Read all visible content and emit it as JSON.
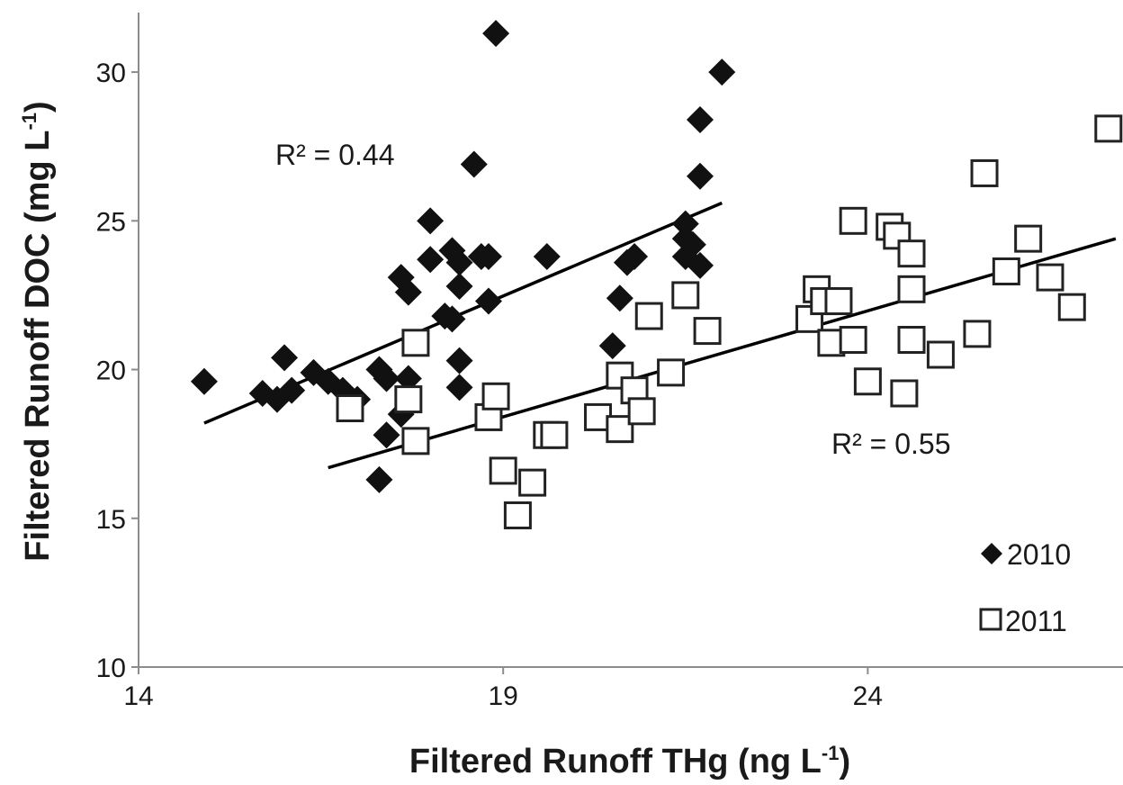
{
  "chart_data": {
    "type": "scatter",
    "title": "",
    "xlabel": {
      "text": "Filtered Runoff  THg (ng L",
      "sup": "-1",
      "tail": ")"
    },
    "ylabel": {
      "text": "Filtered Runoff  DOC (mg L",
      "sup": "-1",
      "tail": ")"
    },
    "xlim": [
      14,
      27.5
    ],
    "ylim": [
      10,
      32
    ],
    "xticks": [
      14,
      19,
      24
    ],
    "yticks": [
      10,
      15,
      20,
      25,
      30
    ],
    "grid": false,
    "legend_position": "bottom-right",
    "series": [
      {
        "name": "2010",
        "marker": "filled-diamond",
        "color": "#111111",
        "points": [
          [
            14.9,
            19.6
          ],
          [
            15.7,
            19.2
          ],
          [
            15.9,
            19.0
          ],
          [
            16.0,
            20.4
          ],
          [
            16.1,
            19.3
          ],
          [
            16.4,
            19.9
          ],
          [
            16.6,
            19.6
          ],
          [
            16.8,
            19.3
          ],
          [
            17.0,
            19.0
          ],
          [
            17.3,
            20.0
          ],
          [
            17.4,
            19.7
          ],
          [
            17.4,
            17.8
          ],
          [
            17.3,
            16.3
          ],
          [
            17.6,
            18.5
          ],
          [
            17.7,
            19.7
          ],
          [
            17.6,
            23.1
          ],
          [
            17.7,
            22.6
          ],
          [
            18.0,
            25.0
          ],
          [
            18.0,
            23.7
          ],
          [
            18.2,
            21.8
          ],
          [
            18.3,
            21.7
          ],
          [
            18.3,
            24.0
          ],
          [
            18.4,
            23.6
          ],
          [
            18.4,
            22.8
          ],
          [
            18.4,
            20.3
          ],
          [
            18.4,
            19.4
          ],
          [
            18.6,
            26.9
          ],
          [
            18.7,
            23.8
          ],
          [
            18.8,
            23.8
          ],
          [
            18.8,
            22.3
          ],
          [
            18.9,
            31.3
          ],
          [
            19.6,
            23.8
          ],
          [
            20.5,
            20.8
          ],
          [
            20.6,
            22.4
          ],
          [
            20.7,
            23.6
          ],
          [
            20.8,
            23.8
          ],
          [
            21.5,
            24.9
          ],
          [
            21.5,
            24.4
          ],
          [
            21.5,
            23.8
          ],
          [
            21.6,
            24.2
          ],
          [
            21.7,
            23.5
          ],
          [
            21.7,
            28.4
          ],
          [
            21.7,
            26.5
          ],
          [
            22.0,
            30.0
          ]
        ],
        "trendline": {
          "x": [
            14.9,
            22.0
          ],
          "y": [
            18.2,
            25.6
          ]
        },
        "annotation": "R² = 0.44"
      },
      {
        "name": "2011",
        "marker": "open-square",
        "color": "#ffffff",
        "points": [
          [
            16.9,
            18.7
          ],
          [
            17.7,
            19.0
          ],
          [
            17.8,
            17.6
          ],
          [
            17.8,
            20.9
          ],
          [
            18.8,
            18.4
          ],
          [
            18.9,
            19.1
          ],
          [
            19.0,
            16.6
          ],
          [
            19.2,
            15.1
          ],
          [
            19.4,
            16.2
          ],
          [
            19.6,
            17.8
          ],
          [
            19.7,
            17.8
          ],
          [
            20.3,
            18.4
          ],
          [
            20.6,
            19.8
          ],
          [
            20.6,
            18.0
          ],
          [
            20.8,
            19.3
          ],
          [
            20.9,
            18.6
          ],
          [
            21.0,
            21.8
          ],
          [
            21.3,
            19.9
          ],
          [
            21.5,
            22.5
          ],
          [
            21.8,
            21.3
          ],
          [
            23.2,
            21.7
          ],
          [
            23.3,
            22.7
          ],
          [
            23.4,
            22.3
          ],
          [
            23.5,
            20.9
          ],
          [
            23.6,
            22.3
          ],
          [
            23.8,
            25.0
          ],
          [
            23.8,
            21.0
          ],
          [
            24.0,
            19.6
          ],
          [
            24.3,
            24.8
          ],
          [
            24.4,
            24.5
          ],
          [
            24.5,
            19.2
          ],
          [
            24.6,
            22.7
          ],
          [
            24.6,
            23.9
          ],
          [
            24.6,
            21.0
          ],
          [
            25.0,
            20.5
          ],
          [
            25.5,
            21.2
          ],
          [
            25.6,
            26.6
          ],
          [
            25.9,
            23.3
          ],
          [
            26.2,
            24.4
          ],
          [
            26.5,
            23.1
          ],
          [
            26.8,
            22.1
          ],
          [
            27.3,
            28.1
          ]
        ],
        "trendline": {
          "x": [
            16.6,
            27.4
          ],
          "y": [
            16.7,
            24.4
          ]
        },
        "annotation": "R² = 0.55"
      }
    ]
  }
}
